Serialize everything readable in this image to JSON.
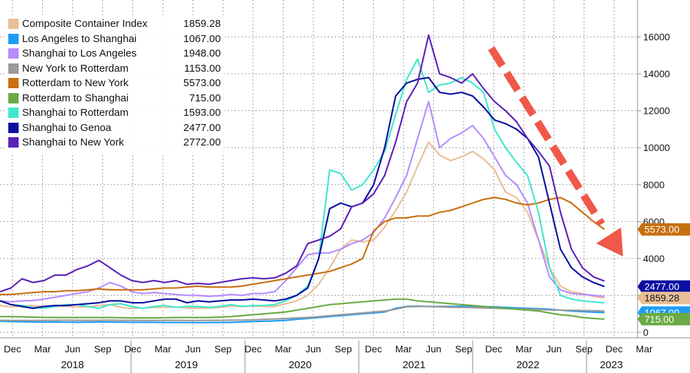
{
  "chart_data": {
    "type": "line",
    "title": "",
    "xlabel": "",
    "ylabel": "",
    "ylim": [
      -300,
      18000
    ],
    "y_ticks": [
      0,
      2000,
      4000,
      6000,
      8000,
      10000,
      12000,
      14000,
      16000
    ],
    "y_tick_labels": [
      "0",
      "2000",
      "4000",
      "6000",
      "8000",
      "10000",
      "12000",
      "14000",
      "16000"
    ],
    "x_month_labels": [
      "Dec",
      "Mar",
      "Jun",
      "Sep",
      "Dec",
      "Mar",
      "Jun",
      "Sep",
      "Dec",
      "Mar",
      "Jun",
      "Sep",
      "Dec",
      "Mar",
      "Jun",
      "Sep",
      "Dec",
      "Mar",
      "Jun",
      "Sep",
      "Dec",
      "Mar"
    ],
    "x_year_labels": [
      "2018",
      "2019",
      "2020",
      "2021",
      "2022",
      "2023"
    ],
    "grid": true,
    "legend_position": "top-left",
    "annotation": "red dashed downward trend arrow",
    "series": [
      {
        "name": "Composite Container Index",
        "last": "1859.28",
        "color": "#E8BE96",
        "values": [
          1450,
          1380,
          1420,
          1450,
          1400,
          1390,
          1410,
          1370,
          1380,
          1450,
          1500,
          1350,
          1300,
          1320,
          1350,
          1350,
          1370,
          1320,
          1310,
          1320,
          1350,
          1420,
          1400,
          1420,
          1400,
          1400,
          1550,
          1700,
          2000,
          2600,
          3500,
          4500,
          5000,
          4900,
          5000,
          5700,
          6600,
          7600,
          9000,
          10300,
          9600,
          9300,
          9500,
          9800,
          9400,
          8800,
          7600,
          7300,
          6500,
          5000,
          3500,
          2500,
          2200,
          2100,
          1950,
          1860
        ]
      },
      {
        "name": "Los Angeles to Shanghai",
        "last": "1067.00",
        "color": "#1E9CF5",
        "values": [
          600,
          580,
          570,
          560,
          550,
          560,
          550,
          540,
          550,
          560,
          560,
          550,
          540,
          540,
          540,
          530,
          530,
          530,
          520,
          530,
          530,
          540,
          560,
          580,
          600,
          620,
          650,
          700,
          750,
          800,
          850,
          900,
          950,
          1000,
          1050,
          1100,
          1300,
          1400,
          1420,
          1400,
          1400,
          1400,
          1410,
          1400,
          1390,
          1380,
          1350,
          1320,
          1300,
          1280,
          1250,
          1200,
          1150,
          1120,
          1090,
          1067
        ]
      },
      {
        "name": "Shanghai to Los Angeles",
        "last": "1948.00",
        "color": "#B58CFF",
        "values": [
          1700,
          1650,
          1700,
          1720,
          1800,
          1900,
          2000,
          2100,
          2200,
          2400,
          2700,
          2500,
          2200,
          2100,
          2150,
          2100,
          2050,
          2000,
          2000,
          1950,
          1980,
          2050,
          2000,
          2100,
          2100,
          2200,
          2800,
          3500,
          4200,
          4300,
          4300,
          4500,
          4800,
          5000,
          5400,
          6200,
          7300,
          8500,
          10500,
          12500,
          10000,
          10500,
          10800,
          11200,
          10500,
          9500,
          8500,
          8000,
          7000,
          5000,
          3000,
          2300,
          2100,
          2050,
          2000,
          1948
        ]
      },
      {
        "name": "New York to Rotterdam",
        "last": "1153.00",
        "color": "#9A9A9A",
        "values": [
          650,
          640,
          640,
          640,
          650,
          650,
          660,
          650,
          650,
          650,
          660,
          650,
          650,
          640,
          640,
          650,
          650,
          640,
          640,
          650,
          650,
          660,
          660,
          680,
          700,
          720,
          750,
          780,
          800,
          850,
          900,
          950,
          1000,
          1050,
          1100,
          1150,
          1250,
          1380,
          1400,
          1400,
          1380,
          1360,
          1350,
          1340,
          1320,
          1300,
          1280,
          1260,
          1250,
          1230,
          1210,
          1200,
          1190,
          1180,
          1170,
          1153
        ]
      },
      {
        "name": "Rotterdam to New York",
        "last": "5573.00",
        "color": "#C87010",
        "values": [
          2050,
          2050,
          2100,
          2150,
          2200,
          2200,
          2250,
          2250,
          2300,
          2350,
          2300,
          2300,
          2300,
          2300,
          2350,
          2400,
          2400,
          2450,
          2500,
          2450,
          2450,
          2450,
          2500,
          2600,
          2700,
          2800,
          2900,
          3000,
          3100,
          3200,
          3300,
          3500,
          3700,
          4000,
          5500,
          6000,
          6200,
          6200,
          6300,
          6300,
          6500,
          6600,
          6800,
          7000,
          7200,
          7300,
          7200,
          7000,
          6900,
          7000,
          7200,
          7300,
          7000,
          6500,
          6000,
          5573
        ]
      },
      {
        "name": "Rotterdam to Shanghai",
        "last": "715.00",
        "color": "#6AAB44",
        "values": [
          850,
          850,
          840,
          820,
          810,
          800,
          800,
          800,
          800,
          800,
          800,
          790,
          780,
          780,
          780,
          790,
          800,
          800,
          800,
          800,
          820,
          850,
          900,
          950,
          1000,
          1050,
          1100,
          1200,
          1300,
          1400,
          1500,
          1550,
          1600,
          1650,
          1700,
          1750,
          1800,
          1800,
          1700,
          1650,
          1600,
          1550,
          1500,
          1450,
          1400,
          1350,
          1300,
          1250,
          1200,
          1150,
          1050,
          950,
          900,
          800,
          750,
          715
        ]
      },
      {
        "name": "Shanghai to Rotterdam",
        "last": "1593.00",
        "color": "#3FE8CC",
        "values": [
          1700,
          1500,
          1450,
          1350,
          1300,
          1400,
          1500,
          1500,
          1400,
          1300,
          1500,
          1550,
          1400,
          1300,
          1400,
          1450,
          1350,
          1400,
          1400,
          1350,
          1400,
          1500,
          1400,
          1450,
          1450,
          1500,
          1700,
          2000,
          2500,
          4000,
          8800,
          8600,
          7700,
          8000,
          8800,
          9800,
          11800,
          13700,
          14800,
          13000,
          13400,
          13500,
          13800,
          13500,
          13000,
          11000,
          10000,
          9200,
          8500,
          6500,
          3500,
          2000,
          1800,
          1700,
          1650,
          1593
        ]
      },
      {
        "name": "Shanghai to Genoa",
        "last": "2477.00",
        "color": "#0A0FA0",
        "values": [
          1700,
          1500,
          1400,
          1300,
          1400,
          1450,
          1450,
          1500,
          1550,
          1600,
          1700,
          1700,
          1600,
          1600,
          1700,
          1800,
          1800,
          1600,
          1700,
          1650,
          1700,
          1750,
          1750,
          1800,
          1750,
          1700,
          1800,
          2000,
          2400,
          4000,
          6700,
          7000,
          6800,
          7000,
          8000,
          10000,
          12800,
          13500,
          13700,
          13800,
          13000,
          12900,
          13000,
          12800,
          12200,
          11500,
          11300,
          11000,
          10500,
          9500,
          7000,
          4500,
          3500,
          3000,
          2700,
          2477
        ]
      },
      {
        "name": "Shanghai to New York",
        "last": "2772.00",
        "color": "#5B22B8",
        "values": [
          2200,
          2400,
          2900,
          2700,
          2800,
          3100,
          3100,
          3400,
          3600,
          3900,
          3500,
          3100,
          2800,
          2700,
          2800,
          2700,
          2800,
          2600,
          2650,
          2600,
          2700,
          2800,
          2900,
          2950,
          2900,
          2950,
          3200,
          3600,
          4800,
          5000,
          5200,
          5600,
          6800,
          7000,
          7500,
          8500,
          10300,
          12500,
          13500,
          16100,
          14000,
          13800,
          13500,
          14000,
          13200,
          12500,
          12000,
          11400,
          10500,
          9800,
          9000,
          6500,
          4500,
          3500,
          3000,
          2772
        ]
      }
    ],
    "right_tags": [
      {
        "label": "5573.00",
        "bg": "#C87010",
        "fg": "#FFFFFF",
        "value": 5573
      },
      {
        "label": "2477.00",
        "bg": "#0A0FA0",
        "fg": "#FFFFFF",
        "value": 2477
      },
      {
        "label": "1859.28",
        "bg": "#E8BE96",
        "fg": "#111111",
        "value": 1859.28
      },
      {
        "label": "1067.00",
        "bg": "#1E9CF5",
        "fg": "#FFFFFF",
        "value": 1067
      },
      {
        "label": "715.00",
        "bg": "#6AAB44",
        "fg": "#FFFFFF",
        "value": 715
      }
    ]
  }
}
